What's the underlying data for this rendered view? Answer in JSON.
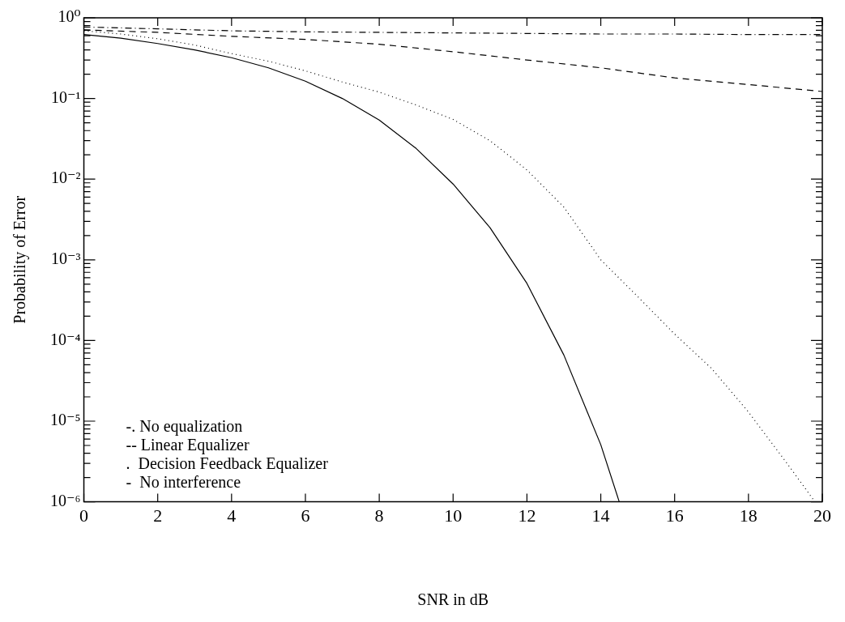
{
  "chart_data": {
    "type": "line",
    "xlabel": "SNR in dB",
    "ylabel": "Probability of Error",
    "log": "y",
    "grid": false,
    "legend": false,
    "marker": "none",
    "xlim": [
      0,
      20
    ],
    "xticks": [
      0,
      2,
      4,
      6,
      8,
      10,
      12,
      14,
      16,
      18,
      20
    ],
    "ylim": [
      1e-06,
      1
    ],
    "yticks": [
      {
        "value": 1e-06,
        "label": "10⁻⁶"
      },
      {
        "value": 2e-06,
        "label": null
      },
      {
        "value": 3e-06,
        "label": null
      },
      {
        "value": 4e-06,
        "label": null
      },
      {
        "value": 5e-06,
        "label": null
      },
      {
        "value": 6e-06,
        "label": null
      },
      {
        "value": 7e-06,
        "label": null
      },
      {
        "value": 8e-06,
        "label": null
      },
      {
        "value": 9e-06,
        "label": null
      },
      {
        "value": 1e-05,
        "label": "10⁻⁵"
      },
      {
        "value": 2e-05,
        "label": null
      },
      {
        "value": 3e-05,
        "label": null
      },
      {
        "value": 4e-05,
        "label": null
      },
      {
        "value": 5e-05,
        "label": null
      },
      {
        "value": 6e-05,
        "label": null
      },
      {
        "value": 7e-05,
        "label": null
      },
      {
        "value": 8e-05,
        "label": null
      },
      {
        "value": 9e-05,
        "label": null
      },
      {
        "value": 0.0001,
        "label": "10⁻⁴"
      },
      {
        "value": 0.0002,
        "label": null
      },
      {
        "value": 0.0003,
        "label": null
      },
      {
        "value": 0.0004,
        "label": null
      },
      {
        "value": 0.0005,
        "label": null
      },
      {
        "value": 0.0006,
        "label": null
      },
      {
        "value": 0.0007,
        "label": null
      },
      {
        "value": 0.0008,
        "label": null
      },
      {
        "value": 0.0009,
        "label": null
      },
      {
        "value": 0.001,
        "label": "10⁻³"
      },
      {
        "value": 0.002,
        "label": null
      },
      {
        "value": 0.003,
        "label": null
      },
      {
        "value": 0.004,
        "label": null
      },
      {
        "value": 0.005,
        "label": null
      },
      {
        "value": 0.006,
        "label": null
      },
      {
        "value": 0.007,
        "label": null
      },
      {
        "value": 0.008,
        "label": null
      },
      {
        "value": 0.009,
        "label": null
      },
      {
        "value": 0.01,
        "label": "10⁻²"
      },
      {
        "value": 0.02,
        "label": null
      },
      {
        "value": 0.03,
        "label": null
      },
      {
        "value": 0.04,
        "label": null
      },
      {
        "value": 0.05,
        "label": null
      },
      {
        "value": 0.06,
        "label": null
      },
      {
        "value": 0.07,
        "label": null
      },
      {
        "value": 0.08,
        "label": null
      },
      {
        "value": 0.09,
        "label": null
      },
      {
        "value": 0.1,
        "label": "10⁻¹"
      },
      {
        "value": 0.2,
        "label": null
      },
      {
        "value": 0.3,
        "label": null
      },
      {
        "value": 0.4,
        "label": null
      },
      {
        "value": 0.5,
        "label": null
      },
      {
        "value": 0.6,
        "label": null
      },
      {
        "value": 0.7,
        "label": null
      },
      {
        "value": 0.8,
        "label": null
      },
      {
        "value": 0.9,
        "label": null
      },
      {
        "value": 1,
        "label": "10⁰"
      }
    ],
    "annotations": [
      "-. No equalization",
      "-- Linear Equalizer",
      ".  Decision Feedback Equalizer",
      "-  No interference"
    ],
    "series": [
      {
        "color": "#000000",
        "line_style": "dashdot",
        "x": [
          0,
          2,
          4,
          6,
          8,
          10,
          12,
          14,
          16,
          18,
          20
        ],
        "values": [
          0.77,
          0.73,
          0.69,
          0.67,
          0.66,
          0.65,
          0.64,
          0.63,
          0.63,
          0.62,
          0.62
        ]
      },
      {
        "color": "#000000",
        "line_style": "dashed",
        "x": [
          0,
          2,
          4,
          6,
          8,
          10,
          12,
          14,
          16,
          18,
          20
        ],
        "values": [
          0.71,
          0.66,
          0.59,
          0.54,
          0.47,
          0.38,
          0.3,
          0.24,
          0.18,
          0.149,
          0.122
        ]
      },
      {
        "color": "#000000",
        "line_style": "dotted",
        "x": [
          0,
          1,
          2,
          3,
          4,
          5,
          6,
          7,
          8,
          9,
          10,
          11,
          12,
          13,
          14,
          15,
          16,
          17,
          18,
          19,
          19.8
        ],
        "values": [
          0.69,
          0.63,
          0.55,
          0.46,
          0.36,
          0.29,
          0.22,
          0.16,
          0.12,
          0.083,
          0.055,
          0.03,
          0.013,
          0.0045,
          0.001,
          0.00035,
          0.00012,
          4.5e-05,
          1.3e-05,
          3.2e-06,
          1e-06
        ]
      },
      {
        "color": "#000000",
        "line_style": "solid",
        "x": [
          0,
          1,
          2,
          3,
          4,
          5,
          6,
          7,
          8,
          9,
          10,
          11,
          12,
          13,
          14,
          14.5
        ],
        "values": [
          0.62,
          0.56,
          0.48,
          0.4,
          0.32,
          0.24,
          0.164,
          0.1,
          0.054,
          0.024,
          0.0087,
          0.0025,
          0.00051,
          6.6e-05,
          5.1e-06,
          1e-06
        ]
      }
    ]
  }
}
